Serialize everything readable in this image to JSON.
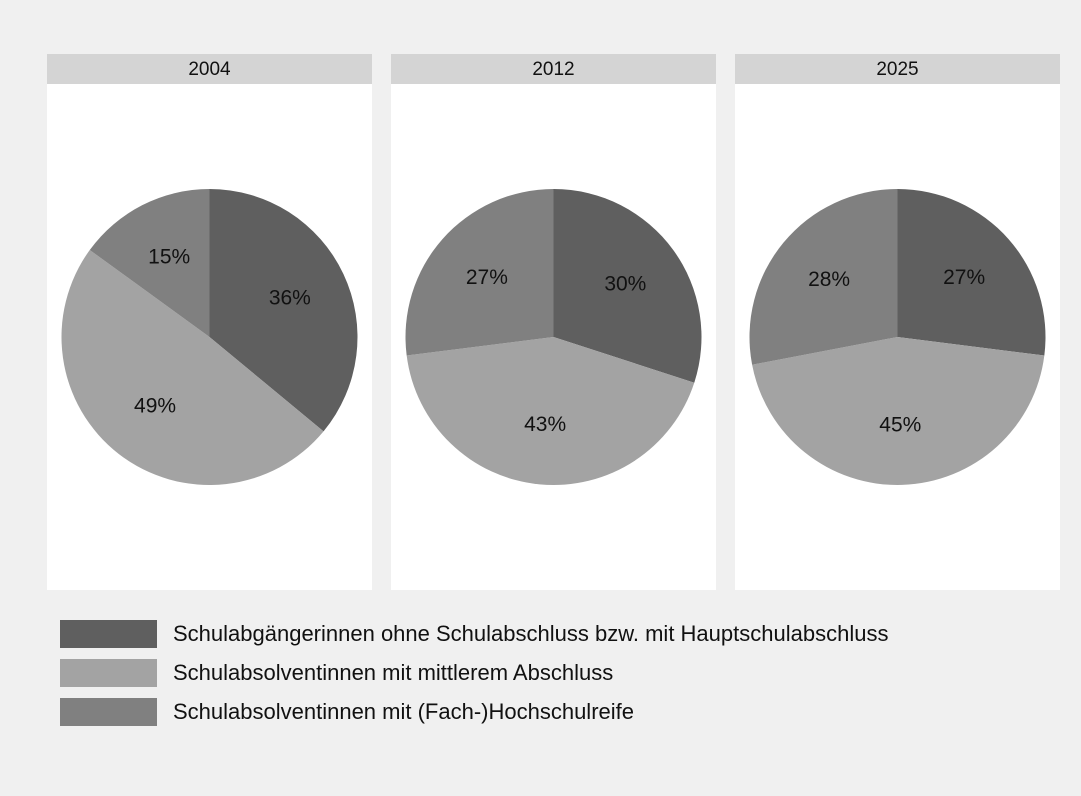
{
  "chart_data": [
    {
      "type": "pie",
      "title": "2004",
      "values": [
        36,
        49,
        15
      ],
      "value_labels": [
        "36%",
        "49%",
        "15%"
      ]
    },
    {
      "type": "pie",
      "title": "2012",
      "values": [
        30,
        43,
        27
      ],
      "value_labels": [
        "30%",
        "43%",
        "27%"
      ]
    },
    {
      "type": "pie",
      "title": "2025",
      "values": [
        27,
        45,
        28
      ],
      "value_labels": [
        "27%",
        "45%",
        "28%"
      ]
    }
  ],
  "legend": {
    "labels": [
      "Schulabgängerinnen ohne Schulabschluss bzw. mit Hauptschulabschluss",
      "Schulabsolventinnen mit mittlerem Abschluss",
      "Schulabsolventinnen mit (Fach-)Hochschulreife"
    ],
    "colors": [
      "#5f5f5f",
      "#a3a3a3",
      "#808080"
    ]
  }
}
